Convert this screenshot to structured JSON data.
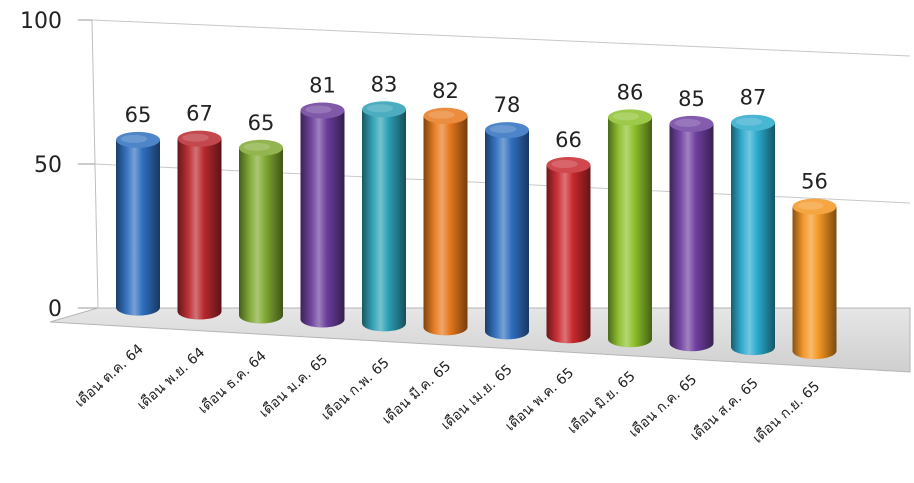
{
  "chart_data": {
    "type": "bar",
    "style": "3d-cylinder",
    "categories": [
      "เดือน ต.ค. 64",
      "เดือน พ.ย. 64",
      "เดือน ธ.ค. 64",
      "เดือน ม.ค. 65",
      "เดือน ก.พ. 65",
      "เดือน มี.ค. 65",
      "เดือน เม.ย. 65",
      "เดือน พ.ค. 65",
      "เดือน มิ.ย. 65",
      "เดือน ก.ค. 65",
      "เดือน ส.ค. 65",
      "เดือน ก.ย. 65"
    ],
    "values": [
      65,
      67,
      65,
      81,
      83,
      82,
      78,
      66,
      86,
      85,
      87,
      56
    ],
    "data_labels": [
      "65",
      "67",
      "65",
      "81",
      "83",
      "82",
      "78",
      "66",
      "86",
      "85",
      "87",
      "56"
    ],
    "colors": [
      "#2f6fbf",
      "#b8282d",
      "#7fa831",
      "#6a3d9a",
      "#2b9fb4",
      "#e7781c",
      "#2f6fbf",
      "#c8282d",
      "#8cbf2a",
      "#6e3fa0",
      "#29a9cc",
      "#f39521"
    ],
    "yticks": [
      "0",
      "50",
      "100"
    ],
    "ylim": [
      0,
      100
    ],
    "title": "",
    "xlabel": "",
    "ylabel": "",
    "grid": true,
    "legend": "none"
  }
}
